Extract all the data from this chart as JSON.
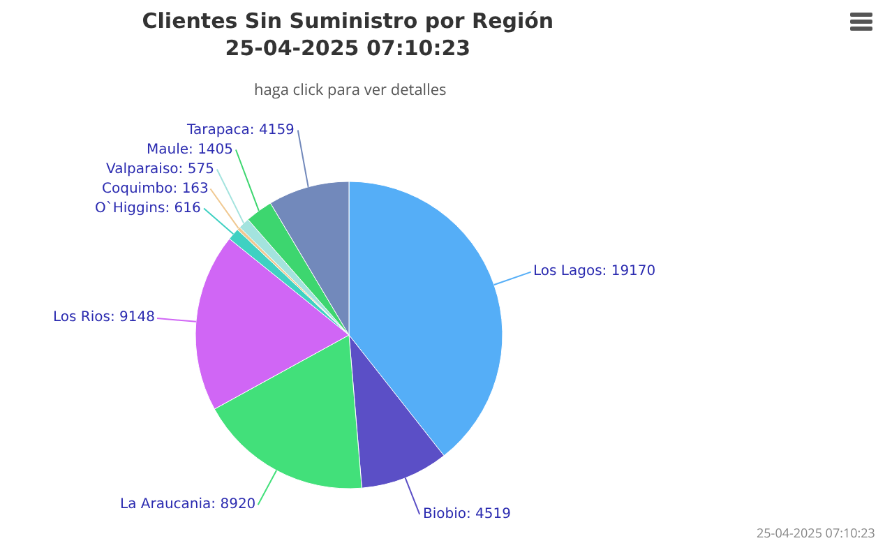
{
  "chart_data": {
    "type": "pie",
    "title": "Clientes Sin Suministro por Región\n25-04-2025 07:10:23",
    "subtitle": "haga click para ver detalles",
    "categories": [
      "Los Lagos: 19170",
      "Biobio: 4519",
      "La Araucania: 8920",
      "Los Rios: 9148",
      "O`Higgins: 616",
      "Coquimbo: 163",
      "Valparaiso: 575",
      "Maule: 1405",
      "Tarapaca: 4159"
    ],
    "values": [
      19170,
      4519,
      8920,
      9148,
      616,
      163,
      575,
      1405,
      4159
    ],
    "colors": [
      "#55aef7",
      "#5b4fc6",
      "#42e07a",
      "#d066f5",
      "#3fd1c2",
      "#f0c890",
      "#a3e3de",
      "#3dd66f",
      "#7289bb"
    ],
    "legend": false,
    "annotations": [
      "25-04-2025 07:10:23"
    ]
  }
}
